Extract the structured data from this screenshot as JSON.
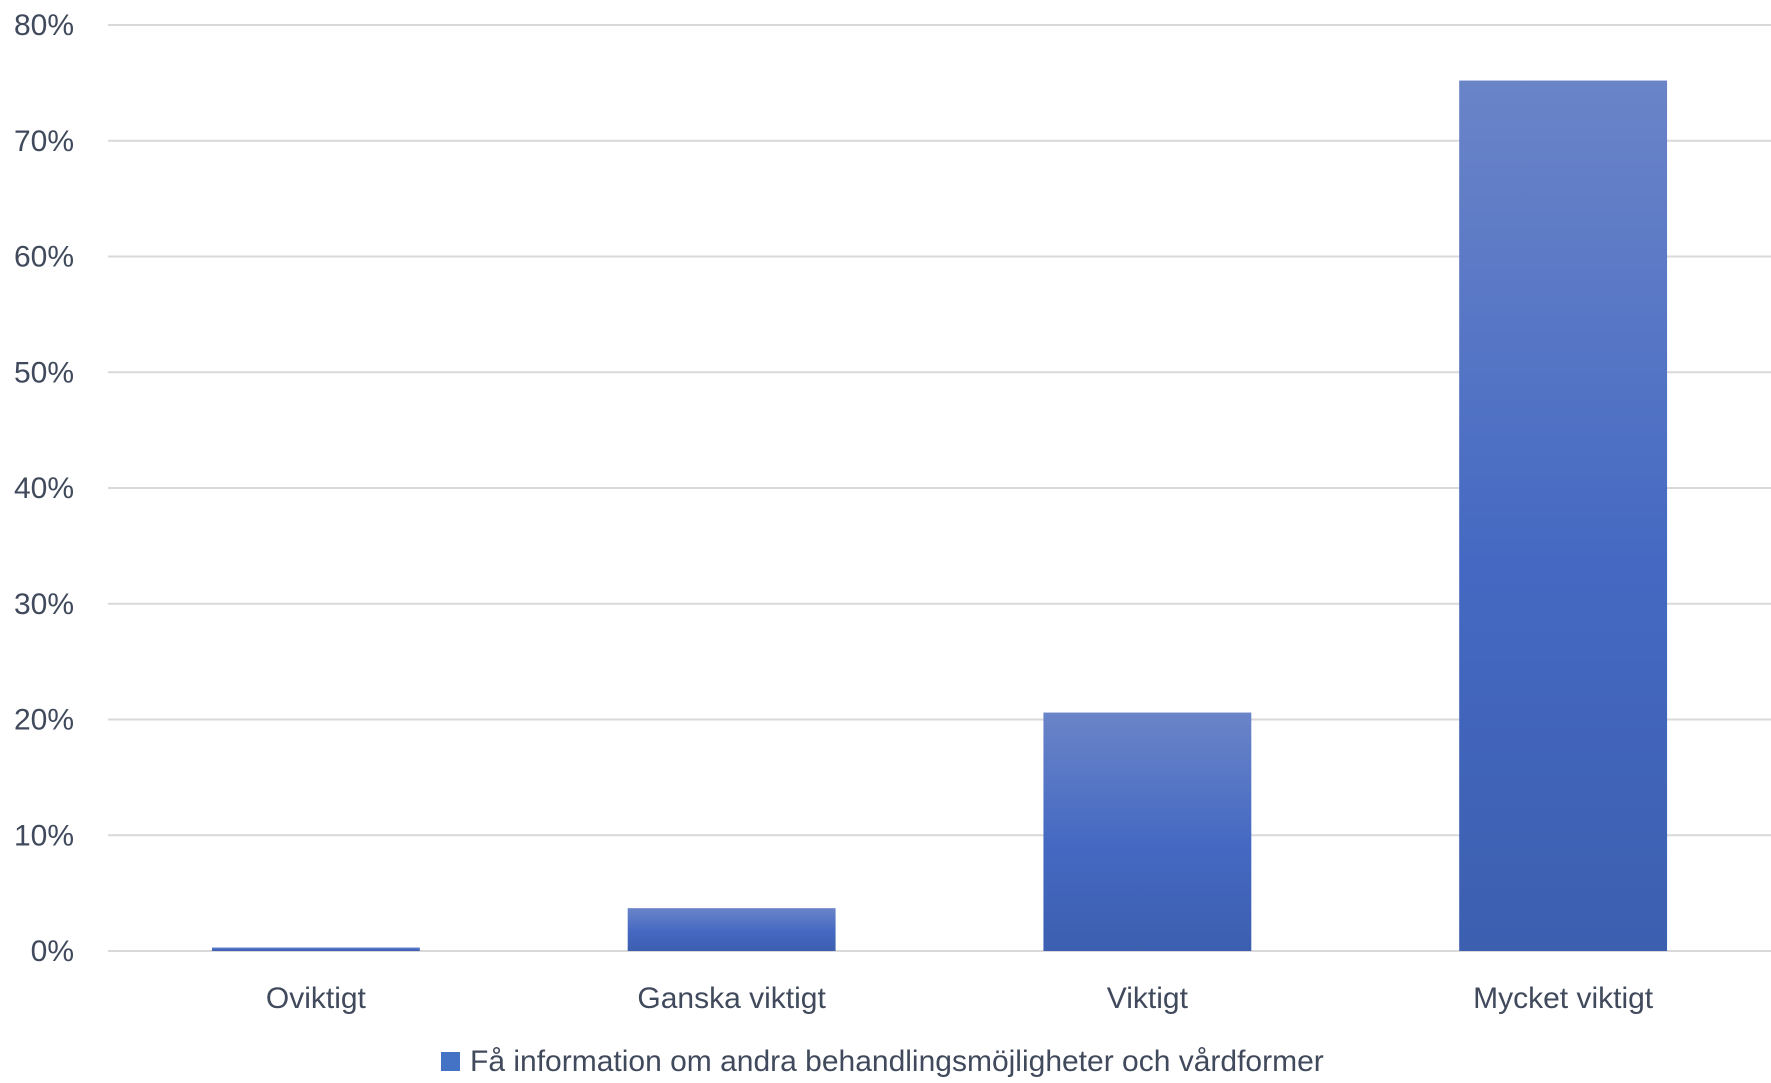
{
  "chart_data": {
    "type": "bar",
    "categories": [
      "Oviktigt",
      "Ganska viktigt",
      "Viktigt",
      "Mycket viktigt"
    ],
    "series": [
      {
        "name": "Få information om andra behandlingsmöjligheter och vårdformer",
        "values": [
          0.3,
          3.7,
          20.6,
          75.2
        ],
        "color": "#4472c4"
      }
    ],
    "ylim": [
      0,
      80
    ],
    "yticks": [
      0,
      10,
      20,
      30,
      40,
      50,
      60,
      70,
      80
    ],
    "ytick_labels": [
      "0%",
      "10%",
      "20%",
      "30%",
      "40%",
      "50%",
      "60%",
      "70%",
      "80%"
    ],
    "grid": true,
    "legend_position": "bottom"
  }
}
